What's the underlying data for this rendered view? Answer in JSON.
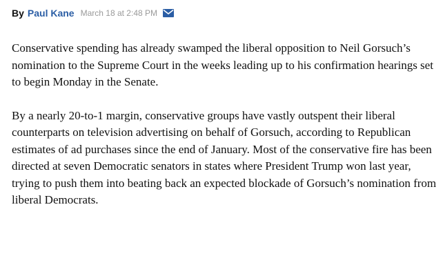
{
  "byline": {
    "prefix": "By",
    "author": "Paul Kane",
    "timestamp": "March 18 at 2:48 PM",
    "email_icon": "envelope-icon",
    "accent_color": "#2b5ea5"
  },
  "article": {
    "paragraphs": [
      "Conservative spending has already swamped the liberal opposition to Neil Gorsuch’s nomination to the Supreme Court in the weeks leading up to his confirmation hearings set to begin Monday in the Senate.",
      "By a nearly 20-to-1 margin, conservative groups have vastly outspent their liberal counterparts on television advertising on behalf of Gorsuch, according to Republican estimates of ad purchases since the end of January. Most of the conservative fire has been directed at seven Democratic senators in states where President Trump won last year, trying to push them into beating back an expected blockade of Gorsuch’s nomination from liberal Democrats."
    ]
  }
}
